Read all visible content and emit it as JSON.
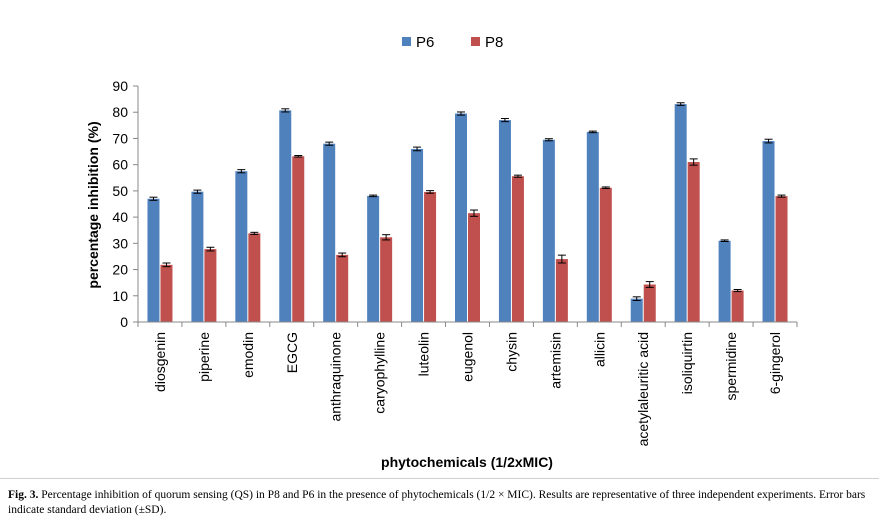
{
  "chart_data": {
    "type": "bar",
    "categories": [
      "diosgenin",
      "piperine",
      "emodin",
      "EGCG",
      "anthraquinone",
      "caryophylline",
      "luteolin",
      "eugenol",
      "chysin",
      "artemisin",
      "allicin",
      "acetylaleuritic acid",
      "isoliquirtin",
      "spermidine",
      "6-gingerol"
    ],
    "series": [
      {
        "name": "P6",
        "color": "#4f81bd",
        "values": [
          47,
          49.7,
          57.5,
          80.7,
          68,
          48.1,
          66,
          79.5,
          77,
          69.5,
          72.5,
          8.9,
          83.1,
          31,
          69
        ],
        "errors": [
          0.6,
          0.6,
          0.6,
          0.6,
          0.6,
          0.3,
          0.7,
          0.6,
          0.6,
          0.4,
          0.3,
          0.7,
          0.5,
          0.3,
          0.7
        ]
      },
      {
        "name": "P8",
        "color": "#c0504d",
        "values": [
          21.8,
          27.8,
          33.8,
          63.2,
          25.6,
          32.3,
          49.6,
          41.5,
          55.6,
          24,
          51.2,
          14.3,
          61,
          12,
          48
        ],
        "errors": [
          0.7,
          0.7,
          0.4,
          0.3,
          0.7,
          1.0,
          0.5,
          1.2,
          0.4,
          1.5,
          0.3,
          1.1,
          1.2,
          0.4,
          0.4
        ]
      }
    ],
    "xlabel": "phytochemicals (1/2xMIC)",
    "ylabel": "percentage inhibition (%)",
    "ylim": [
      0,
      90
    ],
    "yticks": [
      0,
      10,
      20,
      30,
      40,
      50,
      60,
      70,
      80,
      90
    ],
    "legend_position": "top-center",
    "grid": false
  },
  "caption": {
    "label": "Fig. 3.",
    "text": "Percentage inhibition of quorum sensing (QS) in P8 and P6 in the presence of phytochemicals (1/2 × MIC). Results are representative of three independent experiments. Error bars indicate standard deviation (±SD)."
  }
}
